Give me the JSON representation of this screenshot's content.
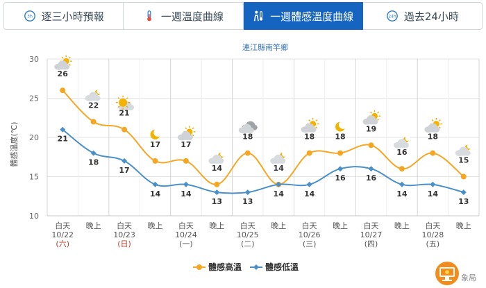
{
  "tabs": [
    {
      "label": "逐三小時預報",
      "icon": "3h-clock-icon",
      "active": false
    },
    {
      "label": "一週溫度曲線",
      "icon": "thermometer-icon",
      "active": false
    },
    {
      "label": "一週體感溫度曲線",
      "icon": "feels-like-person-icon",
      "active": true
    },
    {
      "label": "過去24小時",
      "icon": "24h-clock-icon",
      "active": false
    }
  ],
  "colors": {
    "high": "#f5a623",
    "low": "#4a90c8",
    "tab_active": "#1565c0",
    "weekend": "#c0392b"
  },
  "chart_data": {
    "type": "line",
    "title": "連江縣南竿鄉",
    "ylabel": "體感溫度(℃)",
    "ylim": [
      10,
      30
    ],
    "yticks": [
      10,
      15,
      20,
      25,
      30
    ],
    "categories": [
      "白天",
      "晚上",
      "白天",
      "晚上",
      "白天",
      "晚上",
      "白天",
      "晚上",
      "白天",
      "晚上",
      "白天",
      "晚上",
      "白天",
      "晚上"
    ],
    "dates": [
      {
        "date": "10/22",
        "weekday": "(六)",
        "weekend": true
      },
      {
        "date": "10/23",
        "weekday": "(日)",
        "weekend": true
      },
      {
        "date": "10/24",
        "weekday": "(一)",
        "weekend": false
      },
      {
        "date": "10/25",
        "weekday": "(二)",
        "weekend": false
      },
      {
        "date": "10/26",
        "weekday": "(三)",
        "weekend": false
      },
      {
        "date": "10/27",
        "weekday": "(四)",
        "weekend": false
      },
      {
        "date": "10/28",
        "weekday": "(五)",
        "weekend": false
      }
    ],
    "series": [
      {
        "name": "體感高溫",
        "values": [
          26,
          22,
          21,
          17,
          17,
          14,
          18,
          14,
          18,
          18,
          19,
          16,
          18,
          15
        ]
      },
      {
        "name": "體感低溫",
        "values": [
          21,
          18,
          17,
          14,
          14,
          13,
          13,
          14,
          14,
          16,
          16,
          14,
          14,
          13
        ]
      }
    ],
    "weather_icons": [
      "cloudy-sun-icon",
      "night-cloudy-icon",
      "sunny-cloudy-icon",
      "moon-icon",
      "cloudy-sun-icon",
      "night-cloudy-icon",
      "cloudy-icon",
      "night-cloudy-icon",
      "cloudy-sun-icon",
      "moon-icon",
      "cloudy-sun-icon",
      "night-cloudy-icon",
      "cloudy-sun-icon",
      "night-cloudy-icon"
    ],
    "legend_position": "bottom-center",
    "grid": true
  },
  "footer": {
    "brand_text": "象局"
  }
}
